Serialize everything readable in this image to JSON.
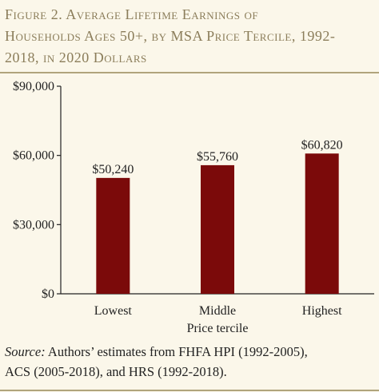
{
  "figure": {
    "title_lines": [
      "Figure 2. Average Lifetime Earnings of",
      "Households Ages 50+, by MSA Price Tercile, 1992-",
      "2018, in 2020 Dollars"
    ],
    "source_label": "Source:",
    "source_lines": [
      " Authors’ estimates from FHFA HPI (1992-2005),",
      "ACS (2005-2018), and HRS (1992-2018)."
    ]
  },
  "colors": {
    "bar": "#7b0a0a",
    "title": "#8b7d5a",
    "background": "#fbf7ea",
    "rule": "#b0a47c"
  },
  "chart_data": {
    "type": "bar",
    "title": "Figure 2. Average Lifetime Earnings of Households Ages 50+, by MSA Price Tercile, 1992-2018, in 2020 Dollars",
    "xlabel": "Price tercile",
    "ylabel": "",
    "categories": [
      "Lowest",
      "Middle",
      "Highest"
    ],
    "values": [
      50240,
      55760,
      60820
    ],
    "value_labels": [
      "$50,240",
      "$55,760",
      "$60,820"
    ],
    "yticks": [
      0,
      30000,
      60000,
      90000
    ],
    "ytick_labels": [
      "$0",
      "$30,000",
      "$60,000",
      "$90,000"
    ],
    "ylim": [
      0,
      90000
    ],
    "grid": false,
    "legend": "none"
  }
}
